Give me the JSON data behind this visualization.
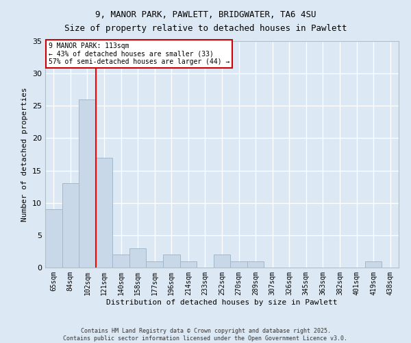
{
  "title_line1": "9, MANOR PARK, PAWLETT, BRIDGWATER, TA6 4SU",
  "title_line2": "Size of property relative to detached houses in Pawlett",
  "xlabel": "Distribution of detached houses by size in Pawlett",
  "ylabel": "Number of detached properties",
  "categories": [
    "65sqm",
    "84sqm",
    "102sqm",
    "121sqm",
    "140sqm",
    "158sqm",
    "177sqm",
    "196sqm",
    "214sqm",
    "233sqm",
    "252sqm",
    "270sqm",
    "289sqm",
    "307sqm",
    "326sqm",
    "345sqm",
    "363sqm",
    "382sqm",
    "401sqm",
    "419sqm",
    "438sqm"
  ],
  "values": [
    9,
    13,
    26,
    17,
    2,
    3,
    1,
    2,
    1,
    0,
    2,
    1,
    1,
    0,
    0,
    0,
    0,
    0,
    0,
    1,
    0
  ],
  "bar_color": "#c8d8e8",
  "bar_edge_color": "#a0b8cc",
  "background_color": "#dce8f4",
  "grid_color": "#ffffff",
  "red_line_x": 2.5,
  "annotation_text": "9 MANOR PARK: 113sqm\n← 43% of detached houses are smaller (33)\n57% of semi-detached houses are larger (44) →",
  "annotation_box_color": "#ffffff",
  "annotation_box_edge": "#cc0000",
  "ylim": [
    0,
    35
  ],
  "yticks": [
    0,
    5,
    10,
    15,
    20,
    25,
    30,
    35
  ],
  "footer_line1": "Contains HM Land Registry data © Crown copyright and database right 2025.",
  "footer_line2": "Contains public sector information licensed under the Open Government Licence v3.0.",
  "title_fontsize": 9,
  "axis_label_fontsize": 8,
  "tick_fontsize": 7,
  "annotation_fontsize": 7,
  "footer_fontsize": 6
}
